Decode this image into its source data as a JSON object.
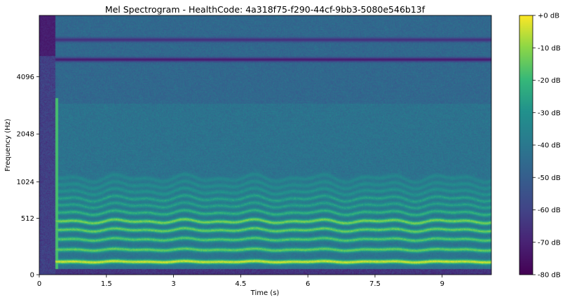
{
  "chart_data": {
    "type": "heatmap",
    "title": "Mel Spectrogram - HealthCode: 4a318f75-f290-44cf-9bb3-5080e546b13f",
    "xlabel": "Time (s)",
    "ylabel": "Frequency (Hz)",
    "x_range": [
      0,
      10.1
    ],
    "x_ticks": [
      {
        "value": 0,
        "label": "0"
      },
      {
        "value": 1.5,
        "label": "1.5"
      },
      {
        "value": 3,
        "label": "3"
      },
      {
        "value": 4.5,
        "label": "4.5"
      },
      {
        "value": 6,
        "label": "6"
      },
      {
        "value": 7.5,
        "label": "7.5"
      },
      {
        "value": 9,
        "label": "9"
      }
    ],
    "y_scale": "mel",
    "y_range": [
      0,
      8000
    ],
    "y_ticks": [
      {
        "value": 0,
        "label": "0"
      },
      {
        "value": 512,
        "label": "512"
      },
      {
        "value": 1024,
        "label": "1024"
      },
      {
        "value": 2048,
        "label": "2048"
      },
      {
        "value": 4096,
        "label": "4096"
      }
    ],
    "colorbar": {
      "colormap": "viridis",
      "range": [
        -80,
        0
      ],
      "ticks": [
        {
          "value": 0,
          "label": "+0 dB"
        },
        {
          "value": -10,
          "label": "-10 dB"
        },
        {
          "value": -20,
          "label": "-20 dB"
        },
        {
          "value": -30,
          "label": "-30 dB"
        },
        {
          "value": -40,
          "label": "-40 dB"
        },
        {
          "value": -50,
          "label": "-50 dB"
        },
        {
          "value": -60,
          "label": "-60 dB"
        },
        {
          "value": -70,
          "label": "-70 dB"
        },
        {
          "value": -80,
          "label": "-80 dB"
        }
      ]
    },
    "onset_time": 0.35,
    "harmonic_bands_hz": [
      {
        "hz": 110,
        "db": -2
      },
      {
        "hz": 225,
        "db": -4
      },
      {
        "hz": 340,
        "db": -14
      },
      {
        "hz": 450,
        "db": -16
      },
      {
        "hz": 560,
        "db": -14
      },
      {
        "hz": 670,
        "db": -12
      },
      {
        "hz": 790,
        "db": -22
      },
      {
        "hz": 900,
        "db": -26
      },
      {
        "hz": 1010,
        "db": -26
      },
      {
        "hz": 1130,
        "db": -30
      },
      {
        "hz": 1250,
        "db": -32
      },
      {
        "hz": 1380,
        "db": -34
      }
    ],
    "background_db": -42,
    "dark_bands_hz": [
      {
        "hz": 5900,
        "db": -72
      },
      {
        "hz": 7300,
        "db": -66
      }
    ]
  }
}
